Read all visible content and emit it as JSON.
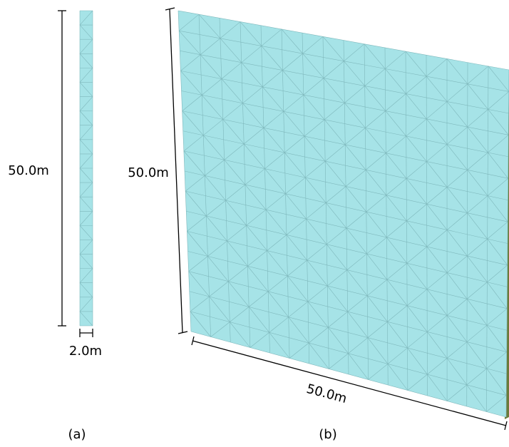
{
  "panel_a": {
    "height_label": "50.0m",
    "width_label": "2.0m",
    "caption": "(a)"
  },
  "panel_b": {
    "height_label": "50.0m",
    "width_label": "50.0m",
    "caption": "(b)"
  }
}
